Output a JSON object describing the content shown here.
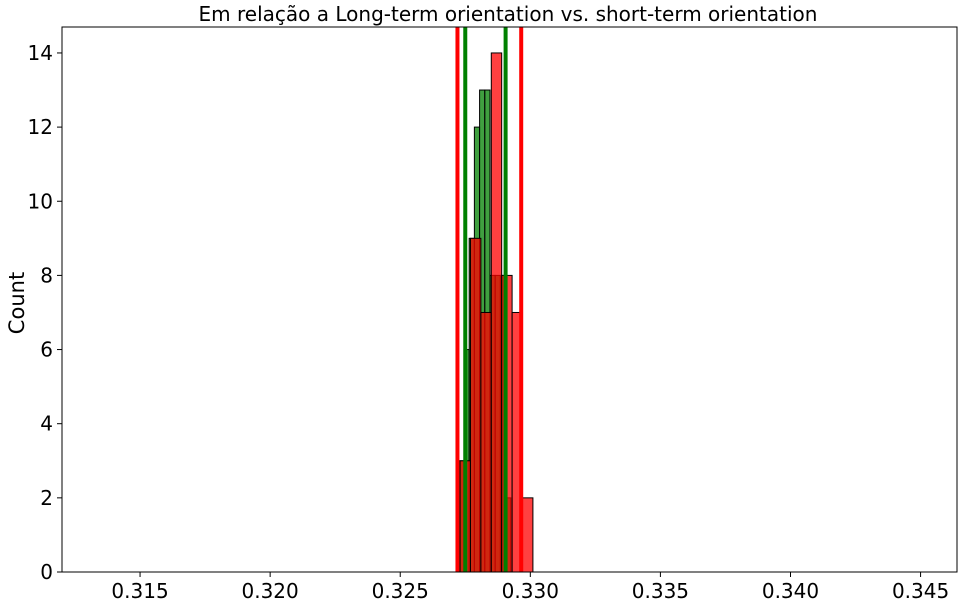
{
  "chart_data": {
    "type": "histogram",
    "title": "Em relação a Long-term orientation vs. short-term orientation",
    "xlabel": "",
    "ylabel": "Count",
    "xlim": [
      0.312,
      0.3464
    ],
    "ylim": [
      0,
      14.7
    ],
    "xticks": [
      0.315,
      0.32,
      0.325,
      0.33,
      0.335,
      0.34,
      0.345
    ],
    "xtick_labels": [
      "0.315",
      "0.320",
      "0.325",
      "0.330",
      "0.335",
      "0.340",
      "0.345"
    ],
    "yticks": [
      0,
      2,
      4,
      6,
      8,
      10,
      12,
      14
    ],
    "ytick_labels": [
      "0",
      "2",
      "4",
      "6",
      "8",
      "10",
      "12",
      "14"
    ],
    "grid": false,
    "series": [
      {
        "color": "#008000",
        "bins": [
          {
            "x0": 0.32715,
            "x1": 0.32725,
            "count": 1
          },
          {
            "x0": 0.32725,
            "x1": 0.32745,
            "count": 3
          },
          {
            "x0": 0.32745,
            "x1": 0.32765,
            "count": 6
          },
          {
            "x0": 0.32765,
            "x1": 0.32785,
            "count": 9
          },
          {
            "x0": 0.32785,
            "x1": 0.32805,
            "count": 12
          },
          {
            "x0": 0.32805,
            "x1": 0.32825,
            "count": 13
          },
          {
            "x0": 0.32825,
            "x1": 0.32845,
            "count": 13
          },
          {
            "x0": 0.32845,
            "x1": 0.32865,
            "count": 8
          },
          {
            "x0": 0.32865,
            "x1": 0.32885,
            "count": 8
          },
          {
            "x0": 0.32885,
            "x1": 0.32905,
            "count": 8
          },
          {
            "x0": 0.32905,
            "x1": 0.32925,
            "count": 2
          }
        ],
        "vlines": [
          0.3275,
          0.32905
        ]
      },
      {
        "color": "#ff0000",
        "bins": [
          {
            "x0": 0.3273,
            "x1": 0.3277,
            "count": 3
          },
          {
            "x0": 0.3277,
            "x1": 0.3281,
            "count": 9
          },
          {
            "x0": 0.3281,
            "x1": 0.3285,
            "count": 7
          },
          {
            "x0": 0.3285,
            "x1": 0.3289,
            "count": 14
          },
          {
            "x0": 0.3289,
            "x1": 0.3293,
            "count": 8
          },
          {
            "x0": 0.3293,
            "x1": 0.3297,
            "count": 7
          },
          {
            "x0": 0.3297,
            "x1": 0.3301,
            "count": 2
          }
        ],
        "vlines": [
          0.3272,
          0.32965
        ]
      }
    ]
  }
}
